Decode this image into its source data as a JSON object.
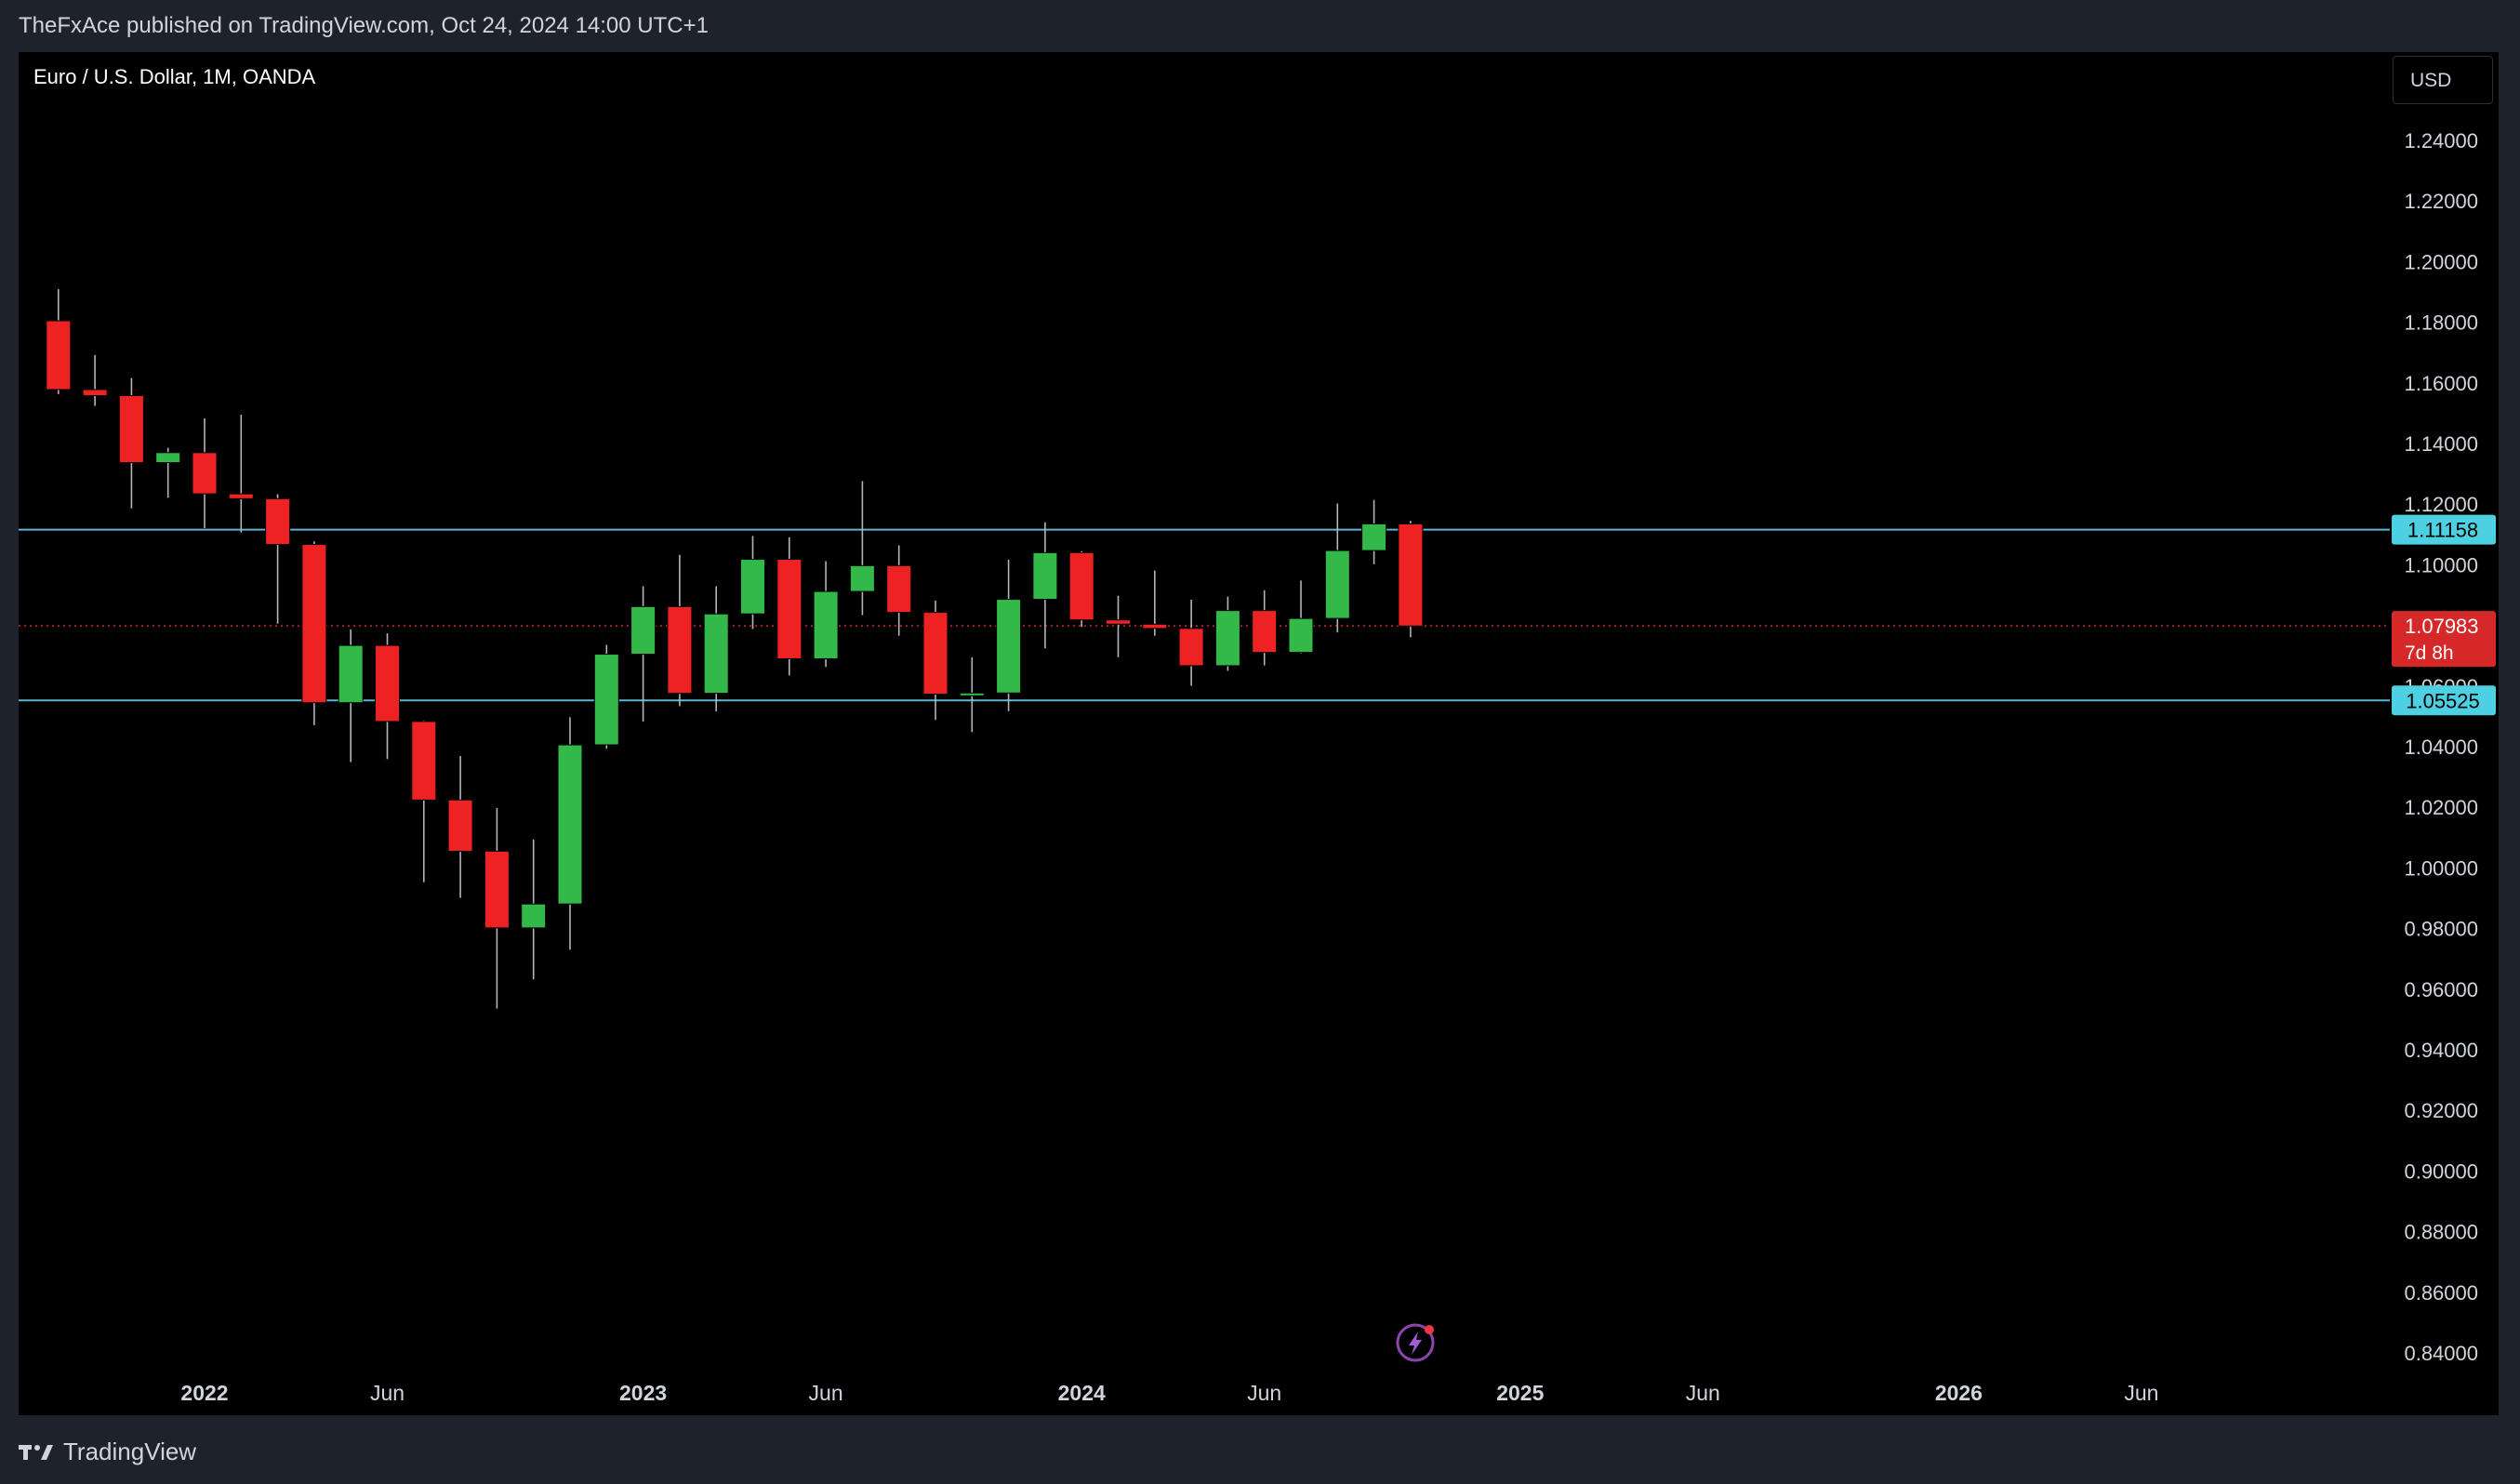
{
  "header": {
    "published_by": "TheFxAce published on TradingView.com, Oct 24, 2024 14:00 UTC+1"
  },
  "chart": {
    "symbol_title": "Euro / U.S. Dollar, 1M, OANDA",
    "currency_button": "USD",
    "bolt_icon": "lightning-bolt-icon"
  },
  "footer": {
    "brand_label": "TradingView",
    "brand_icon": "tradingview-logo-icon"
  },
  "colors": {
    "background": "#000000",
    "up_candle": "#33b84a",
    "down_candle": "#ee2222",
    "wick": "#b2b5be",
    "level_line": "#5bb5cf",
    "level_label": "#4dd0e1",
    "current_price": "#d62828",
    "axis_text": "#d1d4dc"
  },
  "chart_data": {
    "type": "candlestick",
    "symbol": "EUR/USD",
    "interval": "1M",
    "ylim": [
      0.832,
      1.252
    ],
    "y_ticks": [
      "1.24000",
      "1.22000",
      "1.20000",
      "1.18000",
      "1.16000",
      "1.14000",
      "1.12000",
      "1.10000",
      "1.08000",
      "1.06000",
      "1.04000",
      "1.02000",
      "1.00000",
      "0.98000",
      "0.96000",
      "0.94000",
      "0.92000",
      "0.90000",
      "0.88000",
      "0.86000",
      "0.84000"
    ],
    "x_ticks": [
      {
        "label": "2022",
        "month_index": 0
      },
      {
        "label": "Jun",
        "month_index": 5
      },
      {
        "label": "2023",
        "month_index": 12
      },
      {
        "label": "Jun",
        "month_index": 17
      },
      {
        "label": "2024",
        "month_index": 24
      },
      {
        "label": "Jun",
        "month_index": 29
      },
      {
        "label": "2025",
        "month_index": 36
      },
      {
        "label": "Jun",
        "month_index": 41
      },
      {
        "label": "2026",
        "month_index": 48
      },
      {
        "label": "Jun",
        "month_index": 53
      }
    ],
    "candles": [
      {
        "month": "2021-09",
        "o": 1.1805,
        "h": 1.1909,
        "l": 1.1563,
        "c": 1.1578
      },
      {
        "month": "2021-10",
        "o": 1.1578,
        "h": 1.1692,
        "l": 1.1524,
        "c": 1.1558
      },
      {
        "month": "2021-11",
        "o": 1.1558,
        "h": 1.1616,
        "l": 1.1186,
        "c": 1.1337
      },
      {
        "month": "2021-12",
        "o": 1.1337,
        "h": 1.1386,
        "l": 1.1221,
        "c": 1.137
      },
      {
        "month": "2022-01",
        "o": 1.137,
        "h": 1.1483,
        "l": 1.1121,
        "c": 1.1234
      },
      {
        "month": "2022-02",
        "o": 1.1234,
        "h": 1.1495,
        "l": 1.1106,
        "c": 1.1218
      },
      {
        "month": "2022-03",
        "o": 1.1218,
        "h": 1.1233,
        "l": 1.0806,
        "c": 1.1067
      },
      {
        "month": "2022-04",
        "o": 1.1067,
        "h": 1.1077,
        "l": 1.0471,
        "c": 1.0545
      },
      {
        "month": "2022-05",
        "o": 1.0545,
        "h": 1.0787,
        "l": 1.0349,
        "c": 1.0734
      },
      {
        "month": "2022-06",
        "o": 1.0734,
        "h": 1.0774,
        "l": 1.0359,
        "c": 1.0483
      },
      {
        "month": "2022-07",
        "o": 1.0483,
        "h": 1.0486,
        "l": 0.9953,
        "c": 1.0224
      },
      {
        "month": "2022-08",
        "o": 1.0224,
        "h": 1.0369,
        "l": 0.9901,
        "c": 1.0055
      },
      {
        "month": "2022-09",
        "o": 1.0055,
        "h": 1.0198,
        "l": 0.9536,
        "c": 0.9802
      },
      {
        "month": "2022-10",
        "o": 0.9802,
        "h": 1.0094,
        "l": 0.9632,
        "c": 0.9881
      },
      {
        "month": "2022-11",
        "o": 0.9881,
        "h": 1.0497,
        "l": 0.973,
        "c": 1.0406
      },
      {
        "month": "2022-12",
        "o": 1.0406,
        "h": 1.0736,
        "l": 1.0393,
        "c": 1.0705
      },
      {
        "month": "2023-01",
        "o": 1.0705,
        "h": 1.0929,
        "l": 1.0483,
        "c": 1.0862
      },
      {
        "month": "2023-02",
        "o": 1.0862,
        "h": 1.1033,
        "l": 1.0534,
        "c": 1.0576
      },
      {
        "month": "2023-03",
        "o": 1.0576,
        "h": 1.0929,
        "l": 1.0516,
        "c": 1.0838
      },
      {
        "month": "2023-04",
        "o": 1.0838,
        "h": 1.1095,
        "l": 1.0788,
        "c": 1.1018
      },
      {
        "month": "2023-05",
        "o": 1.1018,
        "h": 1.1091,
        "l": 1.0635,
        "c": 1.069
      },
      {
        "month": "2023-06",
        "o": 1.069,
        "h": 1.1012,
        "l": 1.0663,
        "c": 1.0912
      },
      {
        "month": "2023-07",
        "o": 1.0912,
        "h": 1.1276,
        "l": 1.0834,
        "c": 1.0997
      },
      {
        "month": "2023-08",
        "o": 1.0997,
        "h": 1.1064,
        "l": 1.0766,
        "c": 1.0843
      },
      {
        "month": "2023-09",
        "o": 1.0843,
        "h": 1.0882,
        "l": 1.0488,
        "c": 1.0573
      },
      {
        "month": "2023-10",
        "o": 1.0573,
        "h": 1.0695,
        "l": 1.0448,
        "c": 1.0577
      },
      {
        "month": "2023-11",
        "o": 1.0577,
        "h": 1.1017,
        "l": 1.0517,
        "c": 1.0886
      },
      {
        "month": "2023-12",
        "o": 1.0886,
        "h": 1.114,
        "l": 1.0724,
        "c": 1.104
      },
      {
        "month": "2024-01",
        "o": 1.104,
        "h": 1.1045,
        "l": 1.0795,
        "c": 1.0818
      },
      {
        "month": "2024-02",
        "o": 1.0818,
        "h": 1.0898,
        "l": 1.0695,
        "c": 1.0804
      },
      {
        "month": "2024-03",
        "o": 1.0804,
        "h": 1.0981,
        "l": 1.0766,
        "c": 1.079
      },
      {
        "month": "2024-04",
        "o": 1.079,
        "h": 1.0885,
        "l": 1.0601,
        "c": 1.0667
      },
      {
        "month": "2024-05",
        "o": 1.0667,
        "h": 1.0895,
        "l": 1.065,
        "c": 1.0849
      },
      {
        "month": "2024-06",
        "o": 1.0849,
        "h": 1.0916,
        "l": 1.0668,
        "c": 1.0711
      },
      {
        "month": "2024-07",
        "o": 1.0711,
        "h": 1.0948,
        "l": 1.0708,
        "c": 1.0823
      },
      {
        "month": "2024-08",
        "o": 1.0823,
        "h": 1.1202,
        "l": 1.0777,
        "c": 1.1047
      },
      {
        "month": "2024-09",
        "o": 1.1047,
        "h": 1.1214,
        "l": 1.1002,
        "c": 1.1135
      },
      {
        "month": "2024-10",
        "o": 1.1135,
        "h": 1.1145,
        "l": 1.0761,
        "c": 1.0798
      }
    ],
    "horizontal_lines": [
      {
        "price": 1.11158,
        "label": "1.11158"
      },
      {
        "price": 1.05525,
        "label": "1.05525"
      }
    ],
    "current_price": {
      "price": 1.07983,
      "label": "1.07983",
      "countdown": "7d 8h"
    }
  }
}
